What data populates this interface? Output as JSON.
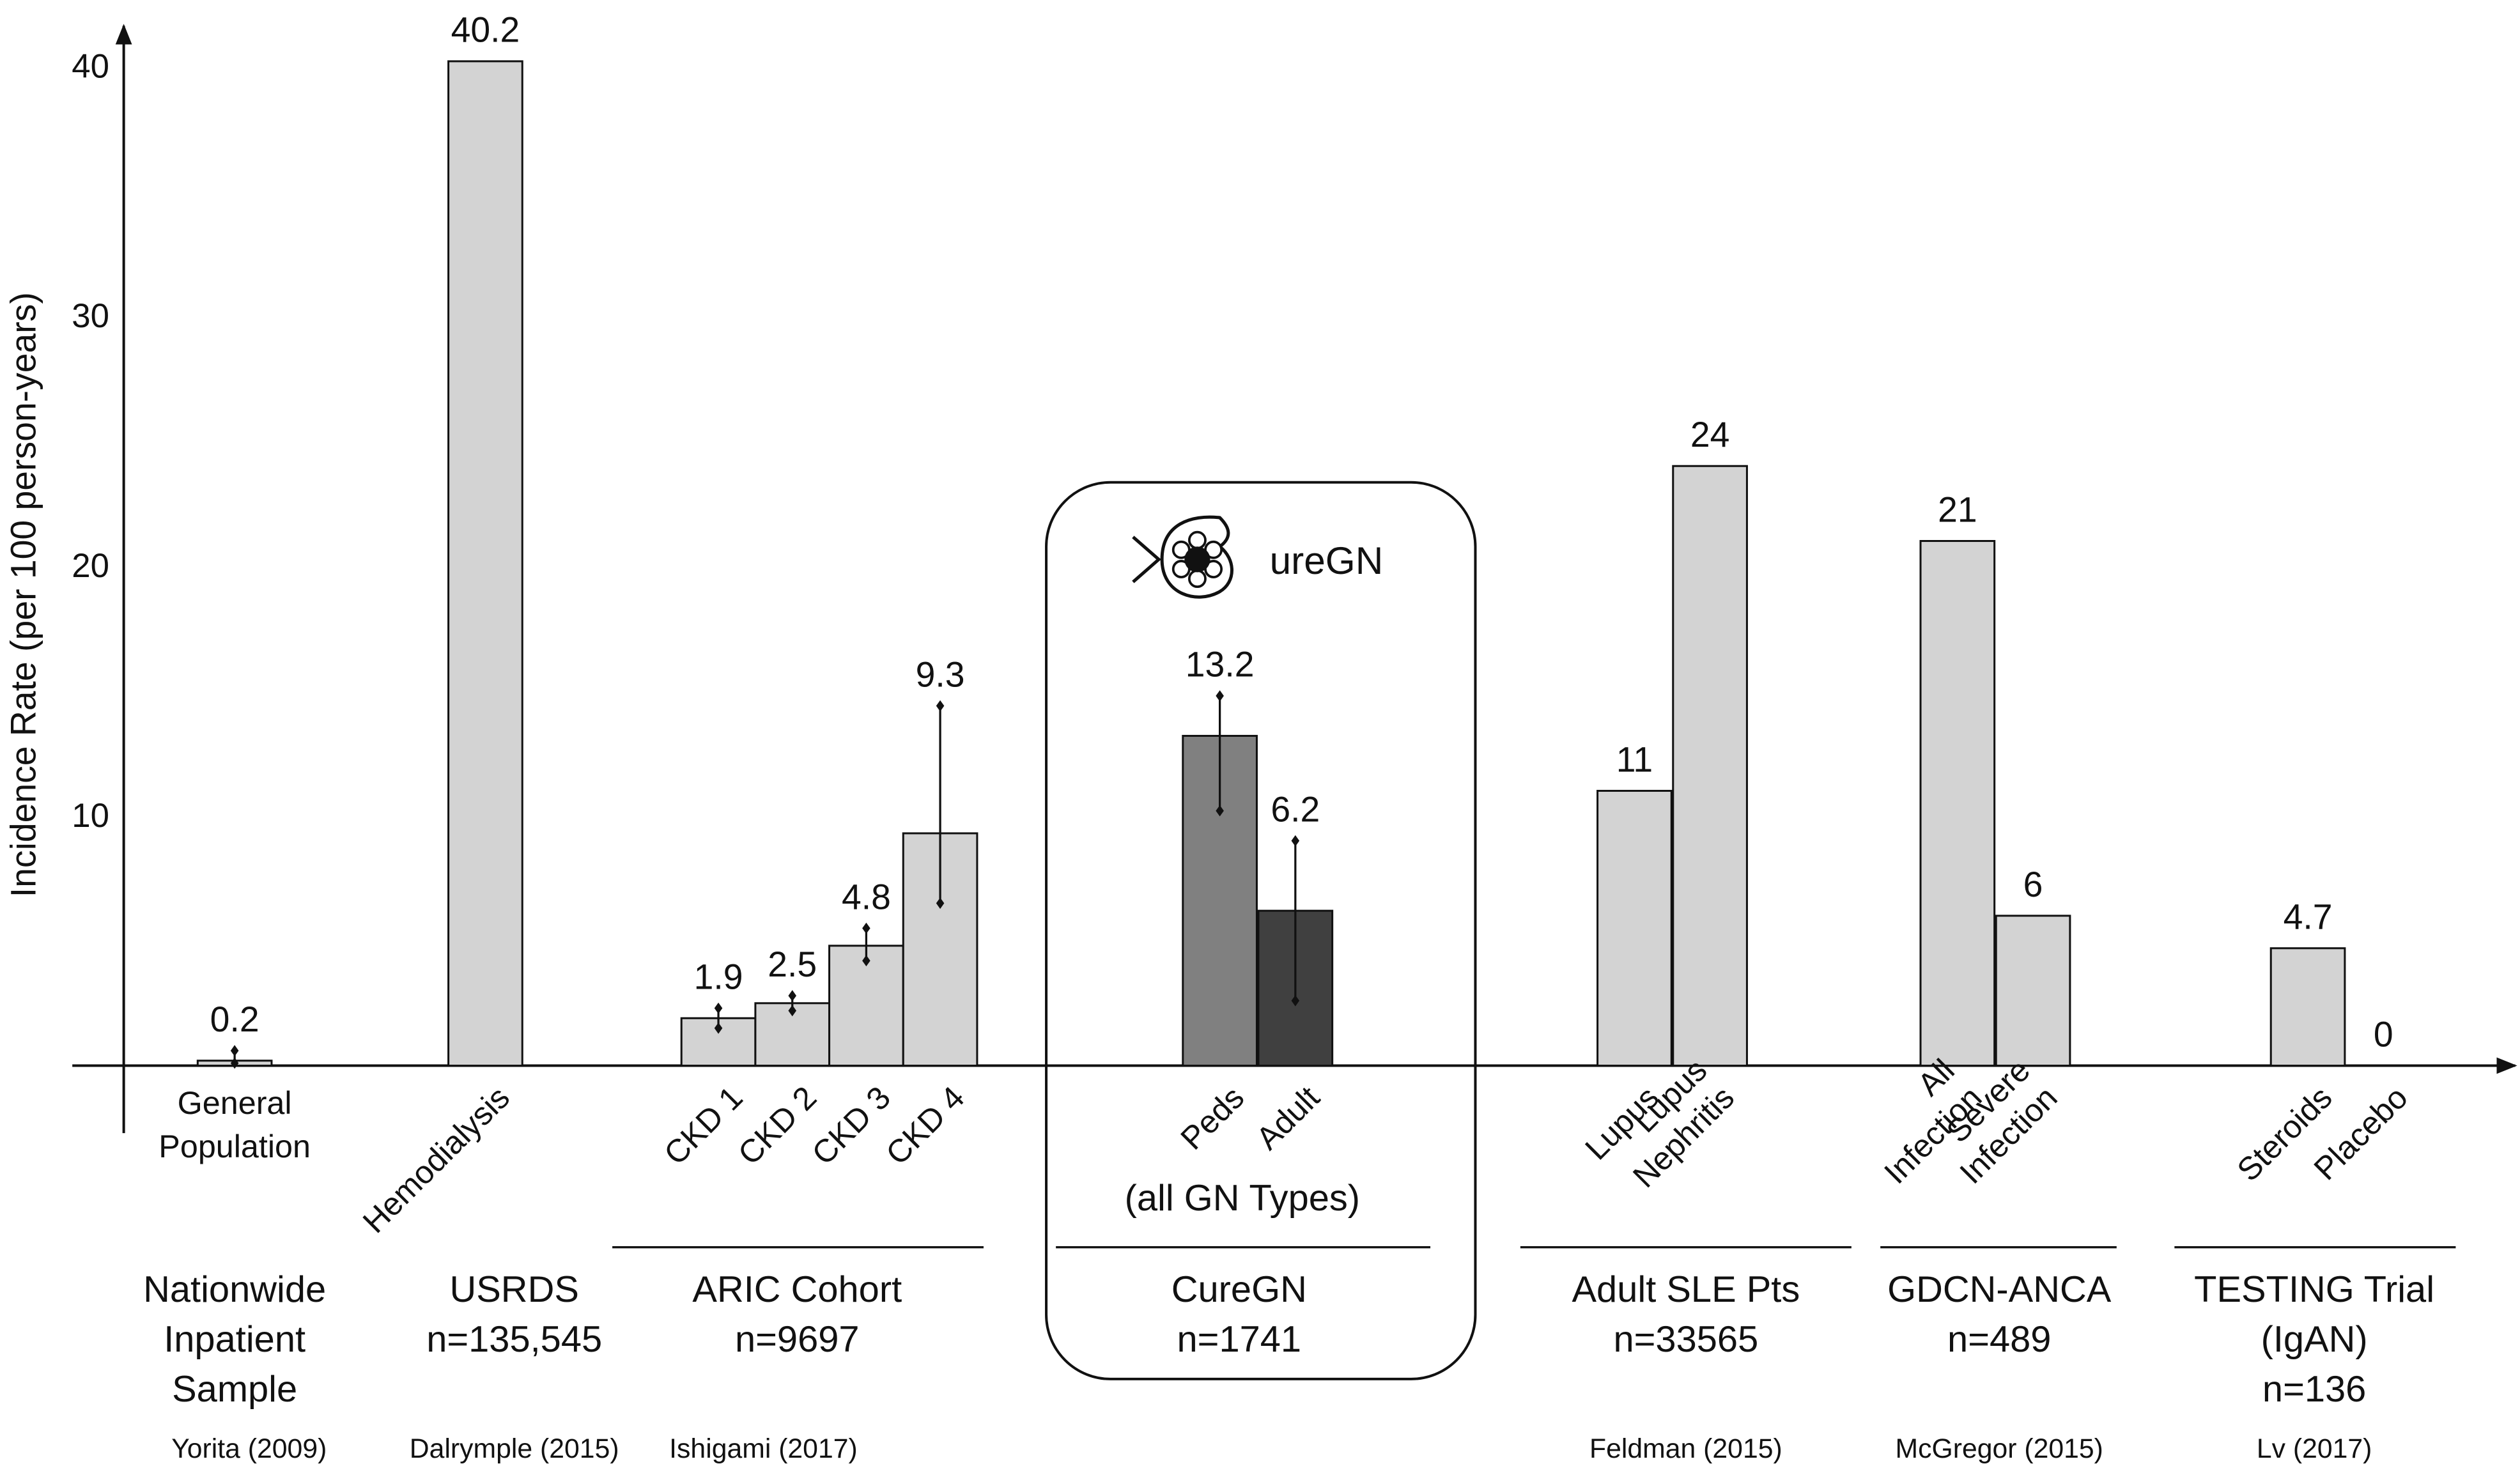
{
  "chart_data": {
    "type": "bar",
    "y_label": "Incidence Rate (per 100 person-years)",
    "ylim": [
      0,
      40.2
    ],
    "yticks": [
      10,
      20,
      30,
      40
    ],
    "color": "#d3d3d3",
    "groups": [
      {
        "study": [
          "Nationwide",
          "Inpatient",
          "Sample"
        ],
        "citation": "Yorita (2009)",
        "label_angle": 0,
        "bracket": false,
        "box": false,
        "bars": [
          {
            "label": [
              "General",
              "Population"
            ],
            "value": 0.2,
            "ci": [
              0.1,
              0.6
            ]
          }
        ]
      },
      {
        "study": [
          "USRDS"
        ],
        "n": "n=135,545",
        "citation": "Dalrymple (2015)",
        "label_angle": -45,
        "bracket": false,
        "box": false,
        "bars": [
          {
            "label": [
              "Hemodialysis"
            ],
            "value": 40.2
          }
        ]
      },
      {
        "study": [
          "ARIC Cohort"
        ],
        "n": "n=9697",
        "citation": "Ishigami (2017)",
        "label_angle": -45,
        "bracket": true,
        "box": false,
        "bars": [
          {
            "label": [
              "CKD 1"
            ],
            "value": 1.9,
            "ci": [
              1.5,
              2.3
            ]
          },
          {
            "label": [
              "CKD 2"
            ],
            "value": 2.5,
            "ci": [
              2.2,
              2.8
            ]
          },
          {
            "label": [
              "CKD 3"
            ],
            "value": 4.8,
            "ci": [
              4.2,
              5.5
            ]
          },
          {
            "label": [
              "CKD 4"
            ],
            "value": 9.3,
            "ci": [
              6.5,
              14.4
            ]
          }
        ]
      },
      {
        "study": [
          "CureGN"
        ],
        "n": "n=1741",
        "subtitle": "(all GN Types)",
        "logo_text": "ureGN",
        "label_angle": -45,
        "bracket": true,
        "box": true,
        "bars": [
          {
            "label": [
              "Peds"
            ],
            "value": 13.2,
            "ci": [
              10.2,
              14.8
            ],
            "color": "#808080"
          },
          {
            "label": [
              "Adult"
            ],
            "value": 6.2,
            "ci": [
              2.6,
              9.0
            ],
            "color": "#404040"
          }
        ]
      },
      {
        "study": [
          "Adult SLE Pts"
        ],
        "n": "n=33565",
        "citation": "Feldman (2015)",
        "label_angle": -45,
        "bracket": true,
        "box": false,
        "bars": [
          {
            "label": [
              "Lupus"
            ],
            "value": 11
          },
          {
            "label": [
              "Lupus",
              "Nephritis"
            ],
            "value": 24
          }
        ]
      },
      {
        "study": [
          "GDCN-ANCA"
        ],
        "n": "n=489",
        "citation": "McGregor (2015)",
        "label_angle": -45,
        "bracket": true,
        "box": false,
        "bars": [
          {
            "label": [
              "All",
              "Infection"
            ],
            "value": 21
          },
          {
            "label": [
              "Severe",
              "Infection"
            ],
            "value": 6
          }
        ]
      },
      {
        "study": [
          "TESTING Trial",
          "(IgAN)"
        ],
        "n": "n=136",
        "citation": "Lv (2017)",
        "label_angle": -45,
        "bracket": true,
        "box": false,
        "bars": [
          {
            "label": [
              "Steroids"
            ],
            "value": 4.7
          },
          {
            "label": [
              "Placebo"
            ],
            "value": 0
          }
        ]
      }
    ]
  }
}
